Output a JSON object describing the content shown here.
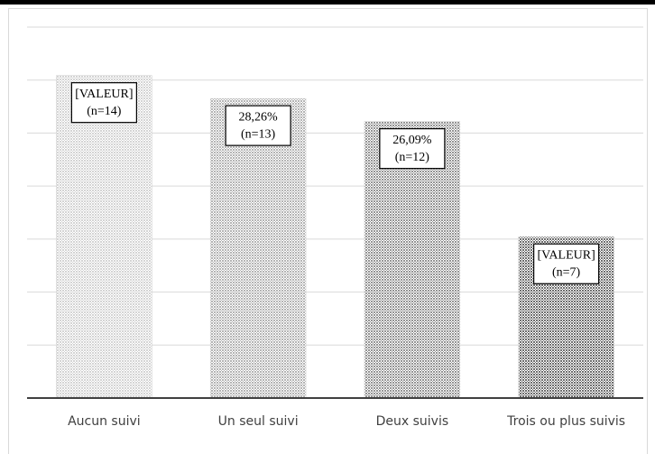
{
  "chart_data": {
    "type": "bar",
    "categories": [
      "Aucun suivi",
      "Un seul suivi",
      "Deux suivis",
      "Trois ou plus suivis"
    ],
    "values": [
      30.43,
      28.26,
      26.09,
      15.22
    ],
    "value_labels": [
      "[VALEUR]",
      "28,26%",
      "26,09%",
      "[VALEUR]"
    ],
    "count_labels": [
      "(n=14)",
      "(n=13)",
      "(n=12)",
      "(n=7)"
    ],
    "colors": [
      "#d4d4d4",
      "#b4b4b4",
      "#949494",
      "#6e6e6e"
    ],
    "ylim": [
      0,
      35
    ],
    "yticks": [
      0,
      5,
      10,
      15,
      20,
      25,
      30,
      35
    ],
    "grid": true
  }
}
